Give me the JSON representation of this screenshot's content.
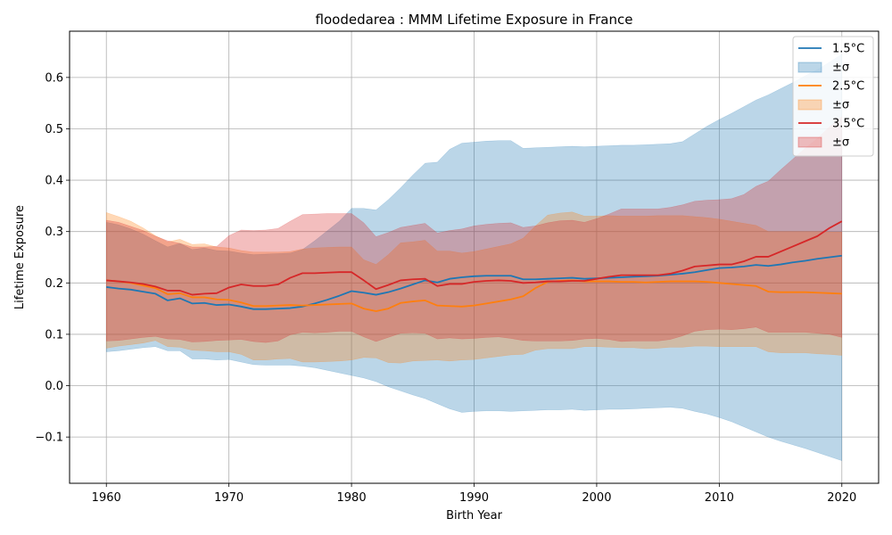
{
  "chart_data": {
    "type": "line",
    "title": "floodedarea : MMM Lifetime Exposure in France",
    "xlabel": "Birth Year",
    "ylabel": "Lifetime Exposure",
    "xlim": [
      1957,
      2023
    ],
    "ylim": [
      -0.19,
      0.69
    ],
    "xticks": [
      1960,
      1970,
      1980,
      1990,
      2000,
      2010,
      2020
    ],
    "yticks": [
      -0.1,
      0.0,
      0.1,
      0.2,
      0.3,
      0.4,
      0.5,
      0.6
    ],
    "ytick_labels": [
      "−0.1",
      "0.0",
      "0.1",
      "0.2",
      "0.3",
      "0.4",
      "0.5",
      "0.6"
    ],
    "grid": true,
    "legend_position": "top-right",
    "x": [
      1960,
      1961,
      1962,
      1963,
      1964,
      1965,
      1966,
      1967,
      1968,
      1969,
      1970,
      1971,
      1972,
      1973,
      1974,
      1975,
      1976,
      1977,
      1978,
      1979,
      1980,
      1981,
      1982,
      1983,
      1984,
      1985,
      1986,
      1987,
      1988,
      1989,
      1990,
      1991,
      1992,
      1993,
      1994,
      1995,
      1996,
      1997,
      1998,
      1999,
      2000,
      2001,
      2002,
      2003,
      2004,
      2005,
      2006,
      2007,
      2008,
      2009,
      2010,
      2011,
      2012,
      2013,
      2014,
      2015,
      2016,
      2017,
      2018,
      2019,
      2020
    ],
    "series": [
      {
        "name": "1.5°C",
        "band_label": "±σ",
        "color": "#1f77b4",
        "values": [
          0.192,
          0.189,
          0.187,
          0.183,
          0.179,
          0.166,
          0.17,
          0.16,
          0.161,
          0.157,
          0.158,
          0.154,
          0.149,
          0.149,
          0.15,
          0.151,
          0.154,
          0.16,
          0.167,
          0.175,
          0.184,
          0.181,
          0.177,
          0.182,
          0.189,
          0.197,
          0.205,
          0.201,
          0.208,
          0.211,
          0.213,
          0.214,
          0.214,
          0.214,
          0.207,
          0.207,
          0.208,
          0.209,
          0.21,
          0.208,
          0.209,
          0.21,
          0.211,
          0.212,
          0.213,
          0.214,
          0.216,
          0.218,
          0.221,
          0.225,
          0.229,
          0.23,
          0.232,
          0.235,
          0.233,
          0.236,
          0.24,
          0.243,
          0.247,
          0.25,
          0.253
        ],
        "upper": [
          0.318,
          0.313,
          0.305,
          0.295,
          0.282,
          0.27,
          0.277,
          0.265,
          0.268,
          0.263,
          0.262,
          0.258,
          0.255,
          0.256,
          0.257,
          0.258,
          0.265,
          0.282,
          0.301,
          0.32,
          0.345,
          0.345,
          0.342,
          0.362,
          0.385,
          0.41,
          0.433,
          0.435,
          0.46,
          0.472,
          0.474,
          0.476,
          0.477,
          0.477,
          0.462,
          0.463,
          0.464,
          0.465,
          0.466,
          0.465,
          0.466,
          0.467,
          0.468,
          0.468,
          0.469,
          0.47,
          0.471,
          0.475,
          0.49,
          0.505,
          0.518,
          0.53,
          0.543,
          0.556,
          0.566,
          0.578,
          0.59,
          0.603,
          0.615,
          0.63,
          0.645
        ],
        "lower": [
          0.066,
          0.068,
          0.071,
          0.074,
          0.076,
          0.068,
          0.068,
          0.052,
          0.052,
          0.05,
          0.051,
          0.046,
          0.041,
          0.04,
          0.04,
          0.04,
          0.038,
          0.035,
          0.03,
          0.025,
          0.02,
          0.015,
          0.008,
          -0.002,
          -0.01,
          -0.018,
          -0.025,
          -0.035,
          -0.045,
          -0.052,
          -0.05,
          -0.049,
          -0.049,
          -0.05,
          -0.049,
          -0.048,
          -0.047,
          -0.047,
          -0.046,
          -0.048,
          -0.047,
          -0.046,
          -0.046,
          -0.045,
          -0.044,
          -0.043,
          -0.042,
          -0.044,
          -0.05,
          -0.055,
          -0.062,
          -0.07,
          -0.08,
          -0.09,
          -0.1,
          -0.108,
          -0.115,
          -0.122,
          -0.13,
          -0.138,
          -0.146
        ]
      },
      {
        "name": "2.5°C",
        "band_label": "±σ",
        "color": "#ff7f0e",
        "values": [
          0.205,
          0.203,
          0.2,
          0.195,
          0.19,
          0.178,
          0.18,
          0.172,
          0.172,
          0.168,
          0.167,
          0.162,
          0.155,
          0.155,
          0.156,
          0.157,
          0.156,
          0.157,
          0.158,
          0.159,
          0.16,
          0.15,
          0.145,
          0.15,
          0.161,
          0.164,
          0.166,
          0.156,
          0.155,
          0.154,
          0.156,
          0.16,
          0.164,
          0.168,
          0.174,
          0.19,
          0.202,
          0.204,
          0.205,
          0.203,
          0.203,
          0.203,
          0.202,
          0.202,
          0.201,
          0.202,
          0.203,
          0.203,
          0.203,
          0.202,
          0.2,
          0.198,
          0.196,
          0.194,
          0.183,
          0.182,
          0.182,
          0.182,
          0.181,
          0.18,
          0.179
        ],
        "upper": [
          0.337,
          0.329,
          0.32,
          0.307,
          0.292,
          0.28,
          0.285,
          0.275,
          0.276,
          0.27,
          0.268,
          0.263,
          0.26,
          0.26,
          0.26,
          0.261,
          0.266,
          0.268,
          0.269,
          0.27,
          0.27,
          0.245,
          0.236,
          0.255,
          0.278,
          0.28,
          0.283,
          0.262,
          0.262,
          0.258,
          0.261,
          0.266,
          0.271,
          0.276,
          0.287,
          0.311,
          0.332,
          0.336,
          0.338,
          0.33,
          0.33,
          0.331,
          0.33,
          0.33,
          0.33,
          0.331,
          0.331,
          0.331,
          0.329,
          0.327,
          0.324,
          0.32,
          0.316,
          0.312,
          0.3,
          0.3,
          0.3,
          0.3,
          0.3,
          0.299,
          0.299
        ],
        "lower": [
          0.073,
          0.077,
          0.08,
          0.083,
          0.088,
          0.076,
          0.075,
          0.069,
          0.068,
          0.066,
          0.066,
          0.061,
          0.05,
          0.05,
          0.052,
          0.053,
          0.046,
          0.046,
          0.047,
          0.048,
          0.05,
          0.055,
          0.054,
          0.045,
          0.044,
          0.048,
          0.049,
          0.05,
          0.048,
          0.05,
          0.051,
          0.054,
          0.057,
          0.06,
          0.061,
          0.069,
          0.072,
          0.072,
          0.072,
          0.076,
          0.076,
          0.075,
          0.074,
          0.074,
          0.072,
          0.073,
          0.075,
          0.075,
          0.077,
          0.077,
          0.076,
          0.076,
          0.076,
          0.076,
          0.066,
          0.064,
          0.064,
          0.064,
          0.062,
          0.061,
          0.059
        ]
      },
      {
        "name": "3.5°C",
        "band_label": "±σ",
        "color": "#d62728",
        "values": [
          0.205,
          0.203,
          0.201,
          0.198,
          0.193,
          0.185,
          0.185,
          0.177,
          0.179,
          0.18,
          0.191,
          0.197,
          0.194,
          0.194,
          0.197,
          0.21,
          0.219,
          0.219,
          0.22,
          0.221,
          0.221,
          0.205,
          0.188,
          0.196,
          0.205,
          0.207,
          0.208,
          0.194,
          0.198,
          0.198,
          0.202,
          0.204,
          0.205,
          0.204,
          0.2,
          0.201,
          0.203,
          0.203,
          0.204,
          0.204,
          0.208,
          0.212,
          0.215,
          0.215,
          0.215,
          0.215,
          0.218,
          0.224,
          0.232,
          0.234,
          0.236,
          0.236,
          0.242,
          0.251,
          0.251,
          0.261,
          0.271,
          0.281,
          0.291,
          0.307,
          0.32
        ],
        "upper": [
          0.322,
          0.318,
          0.31,
          0.302,
          0.291,
          0.282,
          0.277,
          0.27,
          0.27,
          0.271,
          0.292,
          0.303,
          0.302,
          0.303,
          0.306,
          0.32,
          0.333,
          0.334,
          0.335,
          0.335,
          0.335,
          0.317,
          0.29,
          0.298,
          0.308,
          0.312,
          0.316,
          0.297,
          0.302,
          0.305,
          0.311,
          0.314,
          0.316,
          0.317,
          0.308,
          0.311,
          0.317,
          0.321,
          0.322,
          0.318,
          0.325,
          0.334,
          0.344,
          0.344,
          0.344,
          0.344,
          0.347,
          0.352,
          0.359,
          0.361,
          0.362,
          0.364,
          0.372,
          0.388,
          0.398,
          0.42,
          0.441,
          0.462,
          0.481,
          0.504,
          0.524
        ],
        "lower": [
          0.087,
          0.088,
          0.091,
          0.094,
          0.096,
          0.091,
          0.09,
          0.085,
          0.086,
          0.088,
          0.089,
          0.09,
          0.086,
          0.084,
          0.087,
          0.099,
          0.104,
          0.103,
          0.104,
          0.106,
          0.106,
          0.095,
          0.086,
          0.094,
          0.102,
          0.103,
          0.102,
          0.091,
          0.093,
          0.091,
          0.092,
          0.094,
          0.095,
          0.092,
          0.088,
          0.087,
          0.087,
          0.087,
          0.088,
          0.091,
          0.092,
          0.09,
          0.086,
          0.087,
          0.087,
          0.087,
          0.09,
          0.097,
          0.106,
          0.109,
          0.11,
          0.109,
          0.111,
          0.114,
          0.104,
          0.104,
          0.104,
          0.104,
          0.102,
          0.1,
          0.094
        ]
      }
    ]
  }
}
